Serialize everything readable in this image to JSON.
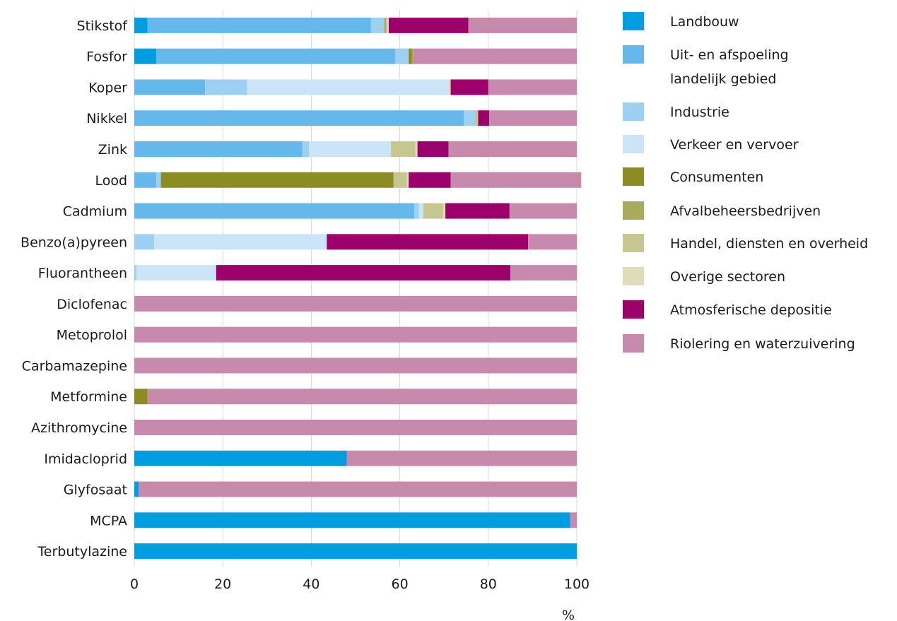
{
  "chart_data": {
    "type": "bar",
    "orientation": "horizontal",
    "stacked": true,
    "categories": [
      "Stikstof",
      "Fosfor",
      "Koper",
      "Nikkel",
      "Zink",
      "Lood",
      "Cadmium",
      "Benzo(a)pyreen",
      "Fluorantheen",
      "Diclofenac",
      "Metoprolol",
      "Carbamazepine",
      "Metformine",
      "Azithromycine",
      "Imidacloprid",
      "Glyfosaat",
      "MCPA",
      "Terbutylazine"
    ],
    "series": [
      {
        "name": "Landbouw",
        "color": "#009ee0",
        "values": [
          3,
          5,
          0,
          0,
          0,
          0,
          0,
          0,
          0,
          0,
          0,
          0,
          0,
          0,
          48,
          1,
          98.5,
          100
        ]
      },
      {
        "name": "Uit- en afspoeling landelijk gebied",
        "color": "#66b8ea",
        "values": [
          50.5,
          54,
          16,
          74.5,
          38,
          5,
          63.3,
          0,
          0,
          0,
          0,
          0,
          0,
          0,
          0,
          0,
          0,
          0
        ]
      },
      {
        "name": "Industrie",
        "color": "#9ed0f3",
        "values": [
          3,
          3,
          9.5,
          2.5,
          1.5,
          1,
          1,
          4.5,
          0.5,
          0,
          0,
          0,
          0,
          0,
          0,
          0,
          0,
          0
        ]
      },
      {
        "name": "Verkeer en vervoer",
        "color": "#cbe4f8",
        "values": [
          0,
          0,
          45.5,
          0,
          18.5,
          0,
          1,
          39,
          18,
          0,
          0,
          0,
          0,
          0,
          0,
          0,
          0,
          0
        ]
      },
      {
        "name": "Consumenten",
        "color": "#8b8c22",
        "values": [
          0,
          0.7,
          0,
          0,
          0,
          52.6,
          0,
          0,
          0,
          0,
          0,
          0,
          3,
          0,
          0,
          0,
          0,
          0
        ]
      },
      {
        "name": "Afvalbeheersbedrijven",
        "color": "#a9aa5a",
        "values": [
          0.5,
          0.3,
          0,
          0,
          0,
          0,
          0,
          0,
          0,
          0,
          0,
          0,
          0,
          0,
          0,
          0,
          0,
          0
        ]
      },
      {
        "name": "Handel, diensten en overheid",
        "color": "#c6c690",
        "values": [
          0,
          0,
          0,
          0.7,
          5.5,
          3,
          4.5,
          0,
          0,
          0,
          0,
          0,
          0,
          0,
          0,
          0,
          0,
          0
        ]
      },
      {
        "name": "Overige sectoren",
        "color": "#deddb8",
        "values": [
          0.5,
          0,
          0.5,
          0,
          0.5,
          0.4,
          0.5,
          0,
          0,
          0,
          0,
          0,
          0,
          0,
          0,
          0,
          0,
          0
        ]
      },
      {
        "name": "Atmosferische depositie",
        "color": "#9b006b",
        "values": [
          18,
          0,
          8.5,
          2.5,
          7,
          9.5,
          14.5,
          45.5,
          66.5,
          0,
          0,
          0,
          0,
          0,
          0,
          0,
          0,
          0
        ]
      },
      {
        "name": "Riolering en waterzuivering",
        "color": "#c88aac",
        "values": [
          24.5,
          37,
          20,
          19.8,
          29,
          29.5,
          15.2,
          11,
          15,
          100,
          100,
          100,
          97,
          100,
          52,
          99,
          1.5,
          0
        ]
      }
    ],
    "xlim": [
      0,
      100
    ],
    "xticks": [
      "0",
      "20",
      "40",
      "60",
      "80",
      "100"
    ],
    "xlabel": "%",
    "ylabel": "",
    "title": "",
    "grid": "vertical",
    "legend_position": "right"
  }
}
